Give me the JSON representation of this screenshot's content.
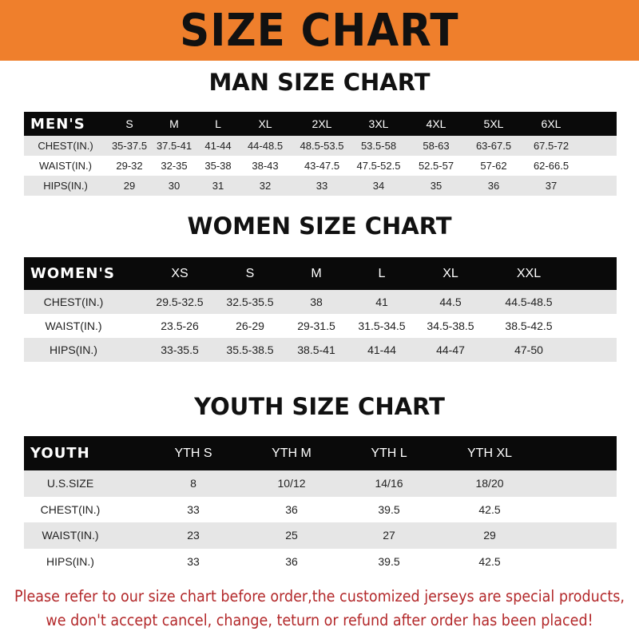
{
  "banner": {
    "title": "SIZE CHART",
    "color": "#ef7f2c"
  },
  "men": {
    "title": "MAN SIZE CHART",
    "header": [
      "MEN'S",
      "S",
      "M",
      "L",
      "XL",
      "2XL",
      "3XL",
      "4XL",
      "5XL",
      "6XL"
    ],
    "rows": [
      [
        "CHEST(IN.)",
        "35-37.5",
        "37.5-41",
        "41-44",
        "44-48.5",
        "48.5-53.5",
        "53.5-58",
        "58-63",
        "63-67.5",
        "67.5-72"
      ],
      [
        "WAIST(IN.)",
        "29-32",
        "32-35",
        "35-38",
        "38-43",
        "43-47.5",
        "47.5-52.5",
        "52.5-57",
        "57-62",
        "62-66.5"
      ],
      [
        "HIPS(IN.)",
        "29",
        "30",
        "31",
        "32",
        "33",
        "34",
        "35",
        "36",
        "37"
      ]
    ]
  },
  "women": {
    "title": "WOMEN SIZE CHART",
    "header": [
      "WOMEN'S",
      "XS",
      "S",
      "M",
      "L",
      "XL",
      "XXL"
    ],
    "rows": [
      [
        "CHEST(IN.)",
        "29.5-32.5",
        "32.5-35.5",
        "38",
        "41",
        "44.5",
        "44.5-48.5"
      ],
      [
        "WAIST(IN.)",
        "23.5-26",
        "26-29",
        "29-31.5",
        "31.5-34.5",
        "34.5-38.5",
        "38.5-42.5"
      ],
      [
        "HIPS(IN.)",
        "33-35.5",
        "35.5-38.5",
        "38.5-41",
        "41-44",
        "44-47",
        "47-50"
      ]
    ]
  },
  "youth": {
    "title": "YOUTH SIZE CHART",
    "header": [
      "YOUTH",
      "YTH S",
      "YTH M",
      "YTH L",
      "YTH XL"
    ],
    "rows": [
      [
        "U.S.SIZE",
        "8",
        "10/12",
        "14/16",
        "18/20"
      ],
      [
        "CHEST(IN.)",
        "33",
        "36",
        "39.5",
        "42.5"
      ],
      [
        "WAIST(IN.)",
        "23",
        "25",
        "27",
        "29"
      ],
      [
        "HIPS(IN.)",
        "33",
        "36",
        "39.5",
        "42.5"
      ]
    ]
  },
  "notice": {
    "line1": "Please refer to our size chart before order,the customized jerseys are special products,",
    "line2": "we don't accept cancel, change, teturn or refund after order has been placed!",
    "color": "#b3282a"
  }
}
